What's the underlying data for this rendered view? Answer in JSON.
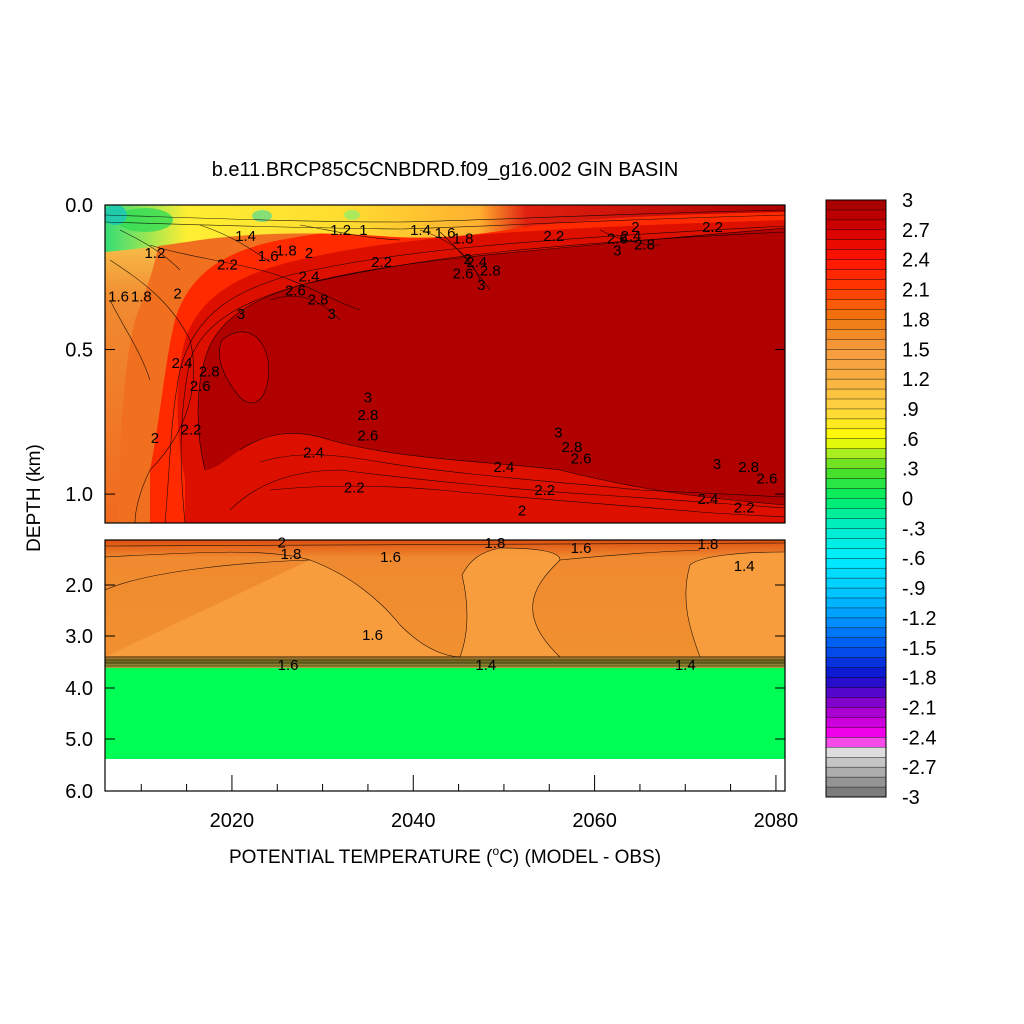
{
  "chart_data": {
    "type": "heatmap",
    "title": "b.e11.BRCP85C5CNBDRD.f09_g16.002 GIN BASIN",
    "xlabel": "POTENTIAL TEMPERATURE (",
    "xlabel_degree": "o",
    "xlabel_suffix": "C) (MODEL - OBS)",
    "ylabel": "DEPTH (km)",
    "xlim": [
      2006,
      2081
    ],
    "x_ticks": [
      "2020",
      "2040",
      "2060",
      "2080"
    ],
    "x_tick_values": [
      2020,
      2040,
      2060,
      2080
    ],
    "top_panel": {
      "ylim": [
        0.0,
        1.1
      ],
      "y_ticks": [
        "0.0",
        "0.5",
        "1.0"
      ],
      "y_tick_values": [
        0.0,
        0.5,
        1.0
      ],
      "contour_labels": [
        {
          "x": 2007.5,
          "y": 0.32,
          "text": "1.6"
        },
        {
          "x": 2010,
          "y": 0.32,
          "text": "1.8"
        },
        {
          "x": 2011.5,
          "y": 0.17,
          "text": "1.2"
        },
        {
          "x": 2014,
          "y": 0.31,
          "text": "2"
        },
        {
          "x": 2019.5,
          "y": 0.21,
          "text": "2.2"
        },
        {
          "x": 2021.5,
          "y": 0.11,
          "text": "1.4"
        },
        {
          "x": 2024,
          "y": 0.18,
          "text": "1.6"
        },
        {
          "x": 2026,
          "y": 0.16,
          "text": "1.8"
        },
        {
          "x": 2028.5,
          "y": 0.17,
          "text": "2"
        },
        {
          "x": 2028.5,
          "y": 0.25,
          "text": "2.4"
        },
        {
          "x": 2027,
          "y": 0.3,
          "text": "2.6"
        },
        {
          "x": 2029.5,
          "y": 0.33,
          "text": "2.8"
        },
        {
          "x": 2031,
          "y": 0.38,
          "text": "3"
        },
        {
          "x": 2021,
          "y": 0.38,
          "text": "3"
        },
        {
          "x": 2032,
          "y": 0.09,
          "text": "1.2"
        },
        {
          "x": 2034.5,
          "y": 0.09,
          "text": "1"
        },
        {
          "x": 2036.5,
          "y": 0.2,
          "text": "2.2"
        },
        {
          "x": 2040.8,
          "y": 0.09,
          "text": "1.4"
        },
        {
          "x": 2043.5,
          "y": 0.1,
          "text": "1.6"
        },
        {
          "x": 2045.5,
          "y": 0.12,
          "text": "1.8"
        },
        {
          "x": 2046,
          "y": 0.19,
          "text": "2"
        },
        {
          "x": 2047,
          "y": 0.2,
          "text": "2.4"
        },
        {
          "x": 2045.5,
          "y": 0.24,
          "text": "2.6"
        },
        {
          "x": 2048.5,
          "y": 0.23,
          "text": "2.8"
        },
        {
          "x": 2047.5,
          "y": 0.28,
          "text": "3"
        },
        {
          "x": 2055.5,
          "y": 0.11,
          "text": "2.2"
        },
        {
          "x": 2062.5,
          "y": 0.12,
          "text": "2.6"
        },
        {
          "x": 2064.5,
          "y": 0.08,
          "text": "2"
        },
        {
          "x": 2064,
          "y": 0.11,
          "text": "2.4"
        },
        {
          "x": 2065.5,
          "y": 0.14,
          "text": "2.8"
        },
        {
          "x": 2062.5,
          "y": 0.16,
          "text": "3"
        },
        {
          "x": 2073,
          "y": 0.08,
          "text": "2.2"
        },
        {
          "x": 2014.5,
          "y": 0.55,
          "text": "2.4"
        },
        {
          "x": 2017.5,
          "y": 0.58,
          "text": "2.8"
        },
        {
          "x": 2016.5,
          "y": 0.63,
          "text": "2.6"
        },
        {
          "x": 2015.5,
          "y": 0.78,
          "text": "2.2"
        },
        {
          "x": 2011.5,
          "y": 0.81,
          "text": "2"
        },
        {
          "x": 2035,
          "y": 0.67,
          "text": "3"
        },
        {
          "x": 2035,
          "y": 0.73,
          "text": "2.8"
        },
        {
          "x": 2035,
          "y": 0.8,
          "text": "2.6"
        },
        {
          "x": 2029,
          "y": 0.86,
          "text": "2.4"
        },
        {
          "x": 2033.5,
          "y": 0.98,
          "text": "2.2"
        },
        {
          "x": 2056,
          "y": 0.79,
          "text": "3"
        },
        {
          "x": 2057.5,
          "y": 0.84,
          "text": "2.8"
        },
        {
          "x": 2058.5,
          "y": 0.88,
          "text": "2.6"
        },
        {
          "x": 2050,
          "y": 0.91,
          "text": "2.4"
        },
        {
          "x": 2054.5,
          "y": 0.99,
          "text": "2.2"
        },
        {
          "x": 2052,
          "y": 1.06,
          "text": "2"
        },
        {
          "x": 2073.5,
          "y": 0.9,
          "text": "3"
        },
        {
          "x": 2077,
          "y": 0.91,
          "text": "2.8"
        },
        {
          "x": 2079,
          "y": 0.95,
          "text": "2.6"
        },
        {
          "x": 2072.5,
          "y": 1.02,
          "text": "2.4"
        },
        {
          "x": 2076.5,
          "y": 1.05,
          "text": "2.2"
        }
      ]
    },
    "bottom_panel": {
      "ylim": [
        1.2,
        6.0
      ],
      "y_ticks": [
        "2.0",
        "3.0",
        "4.0",
        "5.0",
        "6.0"
      ],
      "y_tick_values": [
        2.0,
        3.0,
        4.0,
        5.0,
        6.0
      ],
      "contour_labels": [
        {
          "x": 2025.5,
          "y": 1.26,
          "text": "2"
        },
        {
          "x": 2026.5,
          "y": 1.47,
          "text": "1.8"
        },
        {
          "x": 2037.5,
          "y": 1.52,
          "text": "1.6"
        },
        {
          "x": 2049,
          "y": 1.27,
          "text": "1.8"
        },
        {
          "x": 2058.5,
          "y": 1.36,
          "text": "1.6"
        },
        {
          "x": 2072.5,
          "y": 1.29,
          "text": "1.8"
        },
        {
          "x": 2076.5,
          "y": 1.68,
          "text": "1.4"
        },
        {
          "x": 2035.5,
          "y": 3.0,
          "text": "1.6"
        },
        {
          "x": 2026.2,
          "y": 3.58,
          "text": "1.6"
        },
        {
          "x": 2048,
          "y": 3.58,
          "text": "1.4"
        },
        {
          "x": 2070,
          "y": 3.58,
          "text": "1.4"
        }
      ]
    },
    "colorbar": {
      "min": -3,
      "max": 3,
      "labels": [
        "3",
        "2.7",
        "2.4",
        "2.1",
        "1.8",
        "1.5",
        "1.2",
        ".9",
        ".6",
        ".3",
        "0",
        "-.3",
        "-.6",
        "-.9",
        "-1.2",
        "-1.5",
        "-1.8",
        "-2.1",
        "-2.4",
        "-2.7",
        "-3"
      ]
    },
    "colors": {
      "dark_red": "#b00000",
      "red": "#ff2000",
      "orange_red": "#f07020",
      "orange": "#f59a40",
      "yellow": "#ffe030",
      "green": "#00ff55",
      "missing": "#ffffff"
    }
  }
}
